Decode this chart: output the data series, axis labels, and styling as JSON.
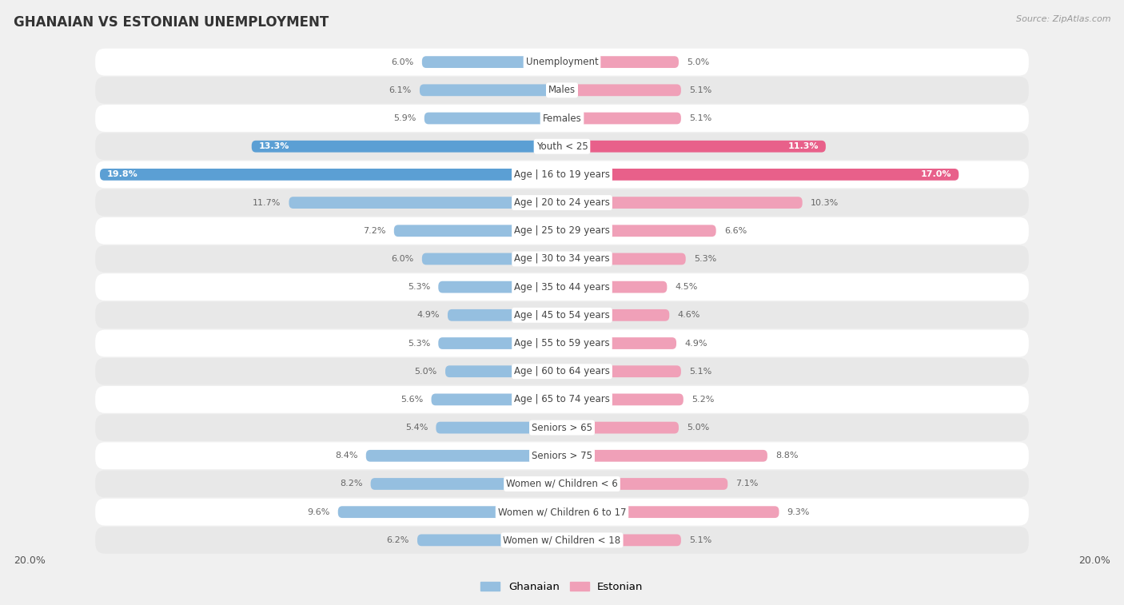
{
  "title": "GHANAIAN VS ESTONIAN UNEMPLOYMENT",
  "source": "Source: ZipAtlas.com",
  "categories": [
    "Unemployment",
    "Males",
    "Females",
    "Youth < 25",
    "Age | 16 to 19 years",
    "Age | 20 to 24 years",
    "Age | 25 to 29 years",
    "Age | 30 to 34 years",
    "Age | 35 to 44 years",
    "Age | 45 to 54 years",
    "Age | 55 to 59 years",
    "Age | 60 to 64 years",
    "Age | 65 to 74 years",
    "Seniors > 65",
    "Seniors > 75",
    "Women w/ Children < 6",
    "Women w/ Children 6 to 17",
    "Women w/ Children < 18"
  ],
  "ghanaian": [
    6.0,
    6.1,
    5.9,
    13.3,
    19.8,
    11.7,
    7.2,
    6.0,
    5.3,
    4.9,
    5.3,
    5.0,
    5.6,
    5.4,
    8.4,
    8.2,
    9.6,
    6.2
  ],
  "estonian": [
    5.0,
    5.1,
    5.1,
    11.3,
    17.0,
    10.3,
    6.6,
    5.3,
    4.5,
    4.6,
    4.9,
    5.1,
    5.2,
    5.0,
    8.8,
    7.1,
    9.3,
    5.1
  ],
  "ghanaian_color_normal": "#95bfe0",
  "estonian_color_normal": "#f0a0b8",
  "ghanaian_color_highlight": "#5b9fd4",
  "estonian_color_highlight": "#e8608a",
  "highlight_threshold_g": 13.0,
  "highlight_threshold_e": 11.0,
  "max_val": 20.0,
  "bg_color": "#f0f0f0",
  "row_bg_white": "#ffffff",
  "row_bg_light": "#e8e8e8",
  "legend_ghanaian": "Ghanaian",
  "legend_estonian": "Estonian",
  "center_label_bg": "#ffffff",
  "center_label_color": "#444444",
  "value_label_color_outside": "#666666",
  "value_label_color_inside": "#ffffff"
}
